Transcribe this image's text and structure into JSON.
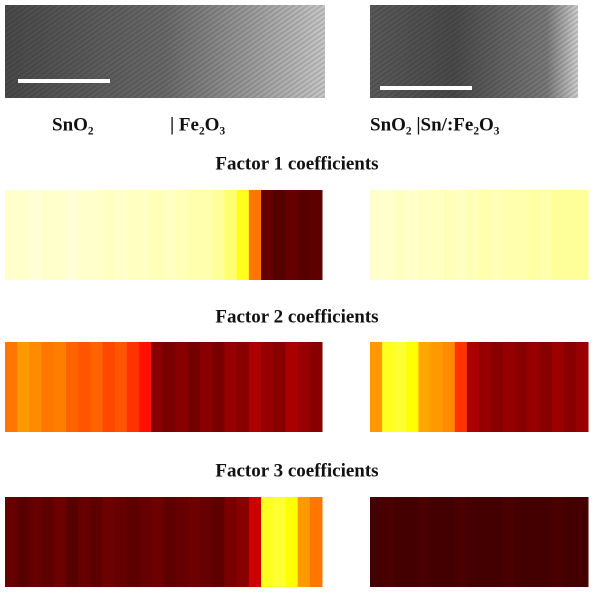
{
  "labels": {
    "left_a": "SnO₂",
    "left_b": "| Fe₂O₃",
    "right": "SnO₂ |Sn/:Fe₂O₃"
  },
  "factors": [
    {
      "title": "Factor 1 coefficients",
      "left": [
        0.95,
        0.95,
        0.96,
        0.95,
        0.95,
        0.96,
        0.95,
        0.95,
        0.94,
        0.95,
        0.94,
        0.94,
        0.93,
        0.94,
        0.93,
        0.92,
        0.92,
        0.9,
        0.86,
        0.78,
        0.55,
        0.15,
        0.12,
        0.15,
        0.13,
        0.14
      ],
      "right": [
        0.95,
        0.95,
        0.94,
        0.95,
        0.94,
        0.94,
        0.93,
        0.94,
        0.93,
        0.92,
        0.93,
        0.92,
        0.92,
        0.91,
        0.92,
        0.9,
        0.9,
        0.9
      ]
    },
    {
      "title": "Factor 2 coefficients",
      "left": [
        0.55,
        0.6,
        0.58,
        0.55,
        0.56,
        0.52,
        0.5,
        0.52,
        0.48,
        0.5,
        0.45,
        0.4,
        0.2,
        0.18,
        0.2,
        0.17,
        0.2,
        0.18,
        0.22,
        0.2,
        0.25,
        0.22,
        0.2,
        0.25,
        0.22,
        0.2
      ],
      "right": [
        0.6,
        0.78,
        0.8,
        0.75,
        0.62,
        0.6,
        0.58,
        0.45,
        0.25,
        0.22,
        0.2,
        0.22,
        0.2,
        0.22,
        0.2,
        0.23,
        0.2,
        0.22
      ]
    },
    {
      "title": "Factor 3 coefficients",
      "left": [
        0.15,
        0.13,
        0.15,
        0.14,
        0.16,
        0.13,
        0.15,
        0.14,
        0.16,
        0.15,
        0.14,
        0.15,
        0.16,
        0.14,
        0.15,
        0.16,
        0.15,
        0.14,
        0.18,
        0.2,
        0.3,
        0.78,
        0.8,
        0.75,
        0.6,
        0.55
      ],
      "right": [
        0.1,
        0.11,
        0.1,
        0.1,
        0.11,
        0.1,
        0.1,
        0.11,
        0.1,
        0.1,
        0.1,
        0.11,
        0.1,
        0.1,
        0.1,
        0.11,
        0.1,
        0.1
      ]
    }
  ]
}
